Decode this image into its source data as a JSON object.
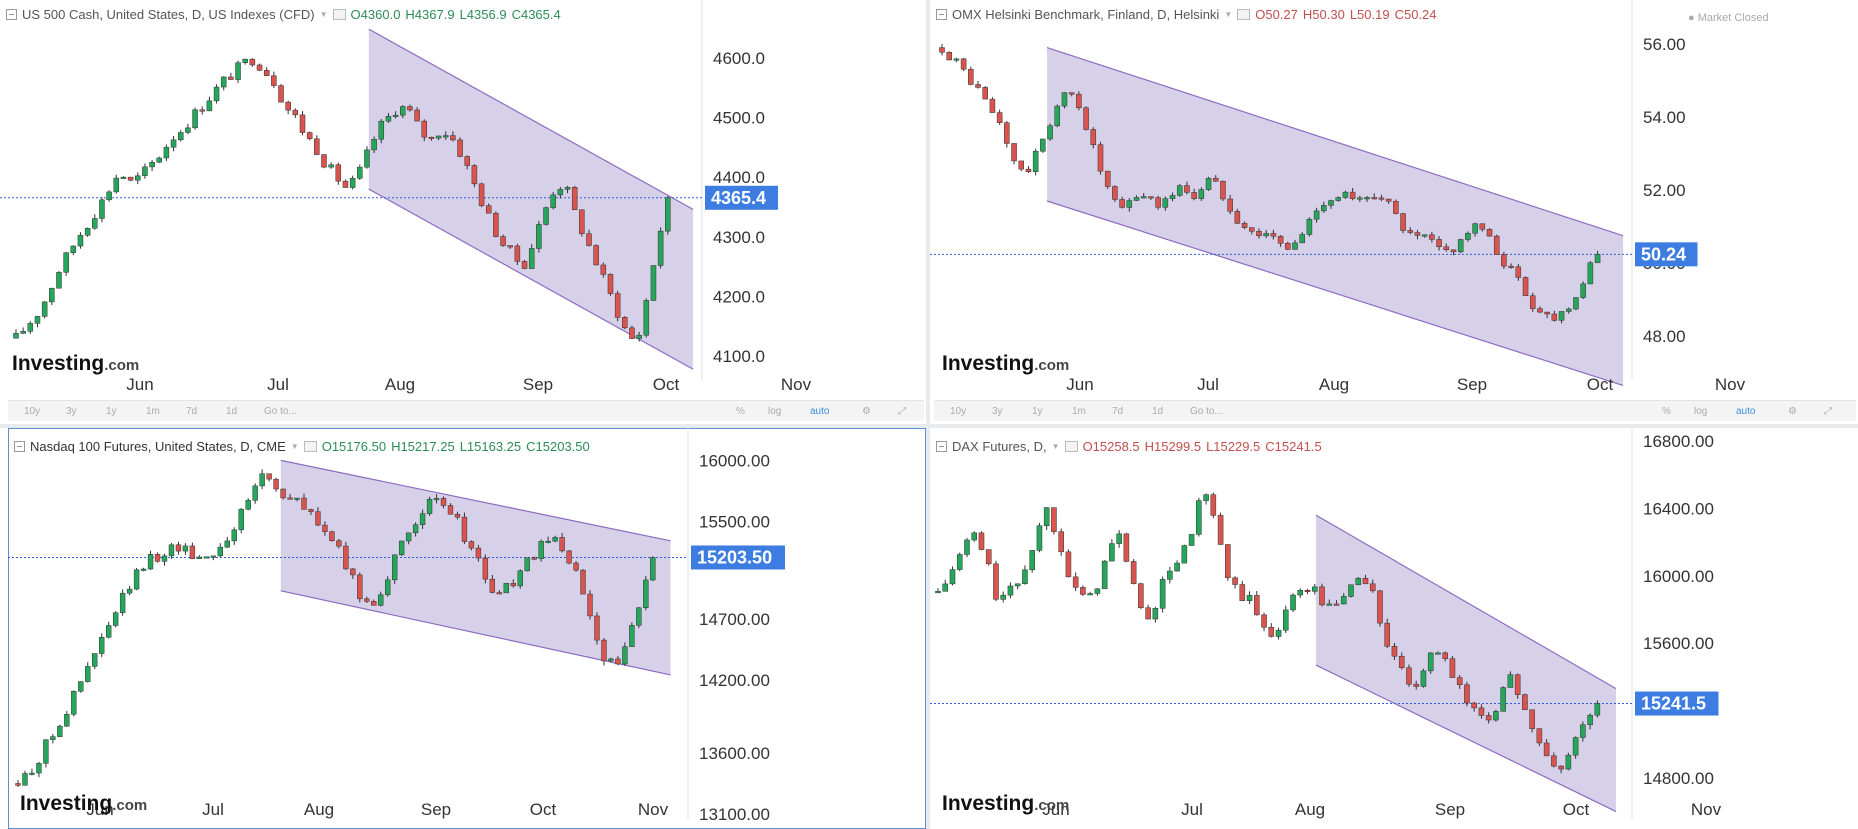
{
  "colors": {
    "up": "#26a65b",
    "down": "#d9534f",
    "channel_fill": "#c9c0e2",
    "channel_line": "#8e6bc2",
    "last_bg": "#3d7de2",
    "last_line": "#2f5fd0"
  },
  "toolbar": {
    "buttons": [
      "10y",
      "3y",
      "1y",
      "1m",
      "7d",
      "1d",
      "Go to..."
    ],
    "right": [
      "%",
      "log",
      "auto"
    ]
  },
  "chart_data": [
    {
      "type": "candlestick",
      "title": "US 500 Cash, United States, D, US Indexes (CFD)",
      "ohlc": {
        "o": "O4360.0",
        "h": "H4367.9",
        "l": "L4356.9",
        "c": "C4365.4"
      },
      "logo": "Investing.com",
      "yticks": [
        "4600.0",
        "4500.0",
        "4400.0",
        "4300.0",
        "4200.0",
        "4100.0"
      ],
      "ylim": [
        4060,
        4660
      ],
      "xticks": [
        "Jun",
        "Jul",
        "Aug",
        "Sep",
        "Oct",
        "Nov"
      ],
      "last": 4365.4,
      "last_label": "4365.4",
      "path": [
        4130,
        4150,
        4170,
        4200,
        4240,
        4270,
        4300,
        4325,
        4350,
        4380,
        4410,
        4390,
        4400,
        4420,
        4440,
        4465,
        4480,
        4500,
        4520,
        4540,
        4560,
        4575,
        4590,
        4600,
        4580,
        4560,
        4520,
        4500,
        4470,
        4450,
        4420,
        4400,
        4380,
        4400,
        4440,
        4480,
        4500,
        4520,
        4510,
        4480,
        4460,
        4480,
        4470,
        4440,
        4400,
        4360,
        4320,
        4290,
        4270,
        4250,
        4290,
        4340,
        4380,
        4390,
        4340,
        4300,
        4260,
        4220,
        4180,
        4140,
        4120,
        4200,
        4290,
        4365
      ],
      "channel": {
        "upper": [
          4648,
          4346
        ],
        "lower": [
          4380,
          4078
        ]
      }
    },
    {
      "type": "candlestick",
      "title": "OMX Helsinki Benchmark, Finland, D, Helsinki",
      "ohlc": {
        "o": "O50.27",
        "h": "H50.30",
        "l": "L50.19",
        "c": "C50.24"
      },
      "status": "● Market Closed",
      "logo": "Investing.com",
      "yticks": [
        "56.00",
        "54.00",
        "52.00",
        "50.00",
        "48.00"
      ],
      "ylim": [
        46.8,
        56.6
      ],
      "xticks": [
        "Jun",
        "Jul",
        "Aug",
        "Sep",
        "Oct",
        "Nov"
      ],
      "last": 50.24,
      "last_label": "50.24",
      "path": [
        55.9,
        55.6,
        55.2,
        54.8,
        54.3,
        53.8,
        53.0,
        52.4,
        52.8,
        53.6,
        54.3,
        54.7,
        54.3,
        53.3,
        52.3,
        51.6,
        51.5,
        51.9,
        51.8,
        51.6,
        51.9,
        52.1,
        51.8,
        52.3,
        52.1,
        51.6,
        51.1,
        50.8,
        50.9,
        50.6,
        50.4,
        50.6,
        51.2,
        51.7,
        51.8,
        51.9,
        51.6,
        51.8,
        52.0,
        51.5,
        51.0,
        50.6,
        50.7,
        50.4,
        50.3,
        50.6,
        51.0,
        50.9,
        50.4,
        50.0,
        49.6,
        49.0,
        48.7,
        48.5,
        48.7,
        49.1,
        49.6,
        50.24
      ],
      "channel": {
        "upper": [
          55.9,
          50.75
        ],
        "lower": [
          51.7,
          46.65
        ]
      }
    },
    {
      "type": "candlestick",
      "title": "Nasdaq 100 Futures, United States, D, CME",
      "ohlc": {
        "o": "O15176.50",
        "h": "H15217.25",
        "l": "L15163.25",
        "c": "C15203.50"
      },
      "logo": "Investing.com",
      "yticks": [
        "16000.00",
        "15500.00",
        "14700.00",
        "14200.00",
        "13600.00",
        "13100.00"
      ],
      "ylim": [
        13050,
        16200
      ],
      "xticks": [
        "Jun",
        "Jul",
        "Aug",
        "Sep",
        "Oct",
        "Nov"
      ],
      "last": 15203.5,
      "last_label": "15203.50",
      "path": [
        13350,
        13450,
        13600,
        13800,
        13950,
        14150,
        14350,
        14550,
        14750,
        14950,
        15100,
        15200,
        15250,
        15300,
        15250,
        15200,
        15250,
        15350,
        15500,
        15700,
        15900,
        15800,
        15700,
        15650,
        15550,
        15450,
        15300,
        15100,
        14900,
        14800,
        15000,
        15200,
        15400,
        15600,
        15650,
        15600,
        15500,
        15300,
        15100,
        14900,
        14950,
        15050,
        15200,
        15300,
        15350,
        15200,
        15000,
        14700,
        14400,
        14300,
        14500,
        14850,
        15203
      ],
      "channel": {
        "upper": [
          16000,
          15340
        ],
        "lower": [
          14930,
          14240
        ]
      }
    },
    {
      "type": "candlestick",
      "title": "DAX Futures, D,",
      "ohlc": {
        "o": "O15258.5",
        "h": "H15299.5",
        "l": "L15229.5",
        "c": "C15241.5"
      },
      "logo": "Investing.com",
      "yticks": [
        "16800.00",
        "16400.00",
        "16000.00",
        "15600.00",
        "14800.00"
      ],
      "ylim": [
        14550,
        16830
      ],
      "xticks": [
        "Jun",
        "Jul",
        "Aug",
        "Sep",
        "Oct",
        "Nov"
      ],
      "last": 15241.5,
      "last_label": "15241.5",
      "path": [
        15900,
        16000,
        16150,
        16250,
        16100,
        15850,
        15900,
        16000,
        16200,
        16400,
        16250,
        16000,
        15850,
        15900,
        16100,
        16250,
        16050,
        15750,
        15800,
        16000,
        16100,
        16200,
        16500,
        16350,
        16000,
        15900,
        15850,
        15700,
        15650,
        15800,
        15900,
        15950,
        15850,
        15800,
        15900,
        16000,
        15950,
        15700,
        15500,
        15400,
        15300,
        15500,
        15600,
        15400,
        15250,
        15200,
        15150,
        15300,
        15400,
        15200,
        15000,
        14900,
        14850,
        15000,
        15150,
        15241
      ],
      "channel": {
        "upper": [
          16360,
          15330
        ],
        "lower": [
          15470,
          14600
        ]
      }
    }
  ]
}
